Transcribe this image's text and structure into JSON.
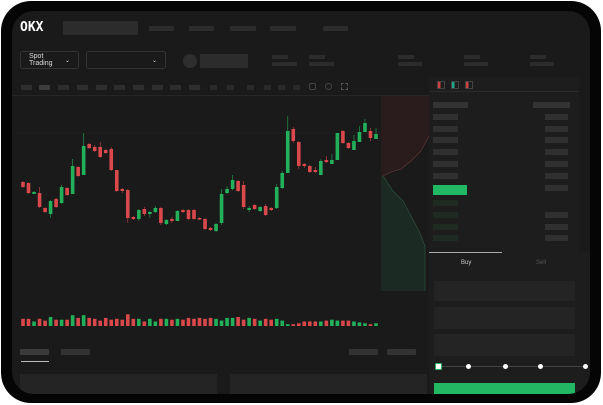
{
  "header": {
    "brand": "OKX",
    "market_selector": "Spot Trading"
  },
  "trade_panel": {
    "tabs": [
      "Buy",
      "Sell"
    ],
    "active_tab": "Buy",
    "slider_percent": 0
  },
  "colors": {
    "up": "#22b05a",
    "down": "#d9484a",
    "accent": "#22b863",
    "background": "#1a1a1a"
  },
  "icons": [
    "chevron-down-icon",
    "camera-icon",
    "settings-icon",
    "fullscreen-icon",
    "orderbook-both-icon",
    "orderbook-bids-icon",
    "orderbook-asks-icon"
  ],
  "chart_data": {
    "type": "candlestick",
    "candles": [
      [
        69,
        64,
        70,
        63
      ],
      [
        68,
        58,
        69,
        57
      ],
      [
        57,
        59,
        60,
        57
      ],
      [
        58,
        44,
        64,
        43
      ],
      [
        43,
        39,
        44,
        38
      ],
      [
        37,
        50,
        51,
        33
      ],
      [
        52,
        44,
        53,
        43
      ],
      [
        48,
        64,
        66,
        47
      ],
      [
        63,
        56,
        64,
        55
      ],
      [
        57,
        85,
        92,
        57
      ],
      [
        84,
        75,
        85,
        74
      ],
      [
        76,
        105,
        118,
        76
      ],
      [
        107,
        103,
        108,
        102
      ],
      [
        104,
        100,
        106,
        99
      ],
      [
        104,
        94,
        109,
        93
      ],
      [
        101,
        98,
        102,
        97
      ],
      [
        102,
        81,
        104,
        80
      ],
      [
        81,
        60,
        81,
        59
      ],
      [
        62,
        60,
        63,
        58
      ],
      [
        61,
        33,
        62,
        28
      ],
      [
        34,
        32,
        35,
        31
      ],
      [
        32,
        41,
        42,
        30
      ],
      [
        42,
        37,
        44,
        35
      ],
      [
        37,
        39,
        40,
        33
      ],
      [
        39,
        43,
        45,
        38
      ],
      [
        43,
        28,
        44,
        26
      ],
      [
        27,
        31,
        32,
        26
      ],
      [
        32,
        30,
        34,
        28
      ],
      [
        30,
        40,
        41,
        30
      ],
      [
        41,
        39,
        42,
        38
      ],
      [
        41,
        32,
        42,
        31
      ],
      [
        41,
        32,
        42,
        31
      ],
      [
        33,
        32,
        34,
        31
      ],
      [
        32,
        22,
        33,
        21
      ],
      [
        23,
        21,
        24,
        20
      ],
      [
        20,
        27,
        28,
        19
      ],
      [
        28,
        57,
        62,
        26
      ],
      [
        58,
        62,
        65,
        57
      ],
      [
        62,
        71,
        76,
        61
      ],
      [
        70,
        60,
        71,
        59
      ],
      [
        66,
        44,
        70,
        42
      ],
      [
        41,
        43,
        45,
        39
      ],
      [
        46,
        42,
        47,
        41
      ],
      [
        40,
        44,
        45,
        39
      ],
      [
        45,
        36,
        47,
        35
      ],
      [
        43,
        41,
        44,
        40
      ],
      [
        43,
        64,
        67,
        42
      ],
      [
        63,
        78,
        80,
        62
      ],
      [
        78,
        120,
        135,
        78
      ],
      [
        122,
        110,
        124,
        108
      ],
      [
        109,
        85,
        110,
        82
      ],
      [
        87,
        85,
        88,
        83
      ],
      [
        85,
        79,
        86,
        78
      ],
      [
        81,
        79,
        84,
        78
      ],
      [
        76,
        90,
        92,
        76
      ],
      [
        91,
        89,
        95,
        88
      ],
      [
        87,
        91,
        97,
        87
      ],
      [
        91,
        118,
        118,
        91
      ],
      [
        120,
        108,
        121,
        107
      ],
      [
        108,
        103,
        109,
        102
      ],
      [
        101,
        110,
        116,
        101
      ],
      [
        109,
        119,
        125,
        109
      ],
      [
        119,
        128,
        132,
        119
      ],
      [
        120,
        113,
        123,
        110
      ],
      [
        112,
        117,
        123,
        112
      ]
    ],
    "volume": [
      8,
      8,
      5,
      8,
      6,
      10,
      7,
      7,
      7,
      12,
      9,
      12,
      9,
      8,
      6,
      9,
      7,
      8,
      7,
      13,
      8,
      8,
      5,
      8,
      5,
      8,
      8,
      7,
      8,
      7,
      9,
      8,
      9,
      8,
      9,
      8,
      6,
      9,
      9,
      10,
      7,
      9,
      8,
      6,
      8,
      7,
      8,
      6,
      2,
      2,
      3,
      5,
      5,
      5,
      5,
      6,
      7,
      6,
      6,
      6,
      5,
      4,
      3,
      2,
      3
    ],
    "grid": false
  }
}
